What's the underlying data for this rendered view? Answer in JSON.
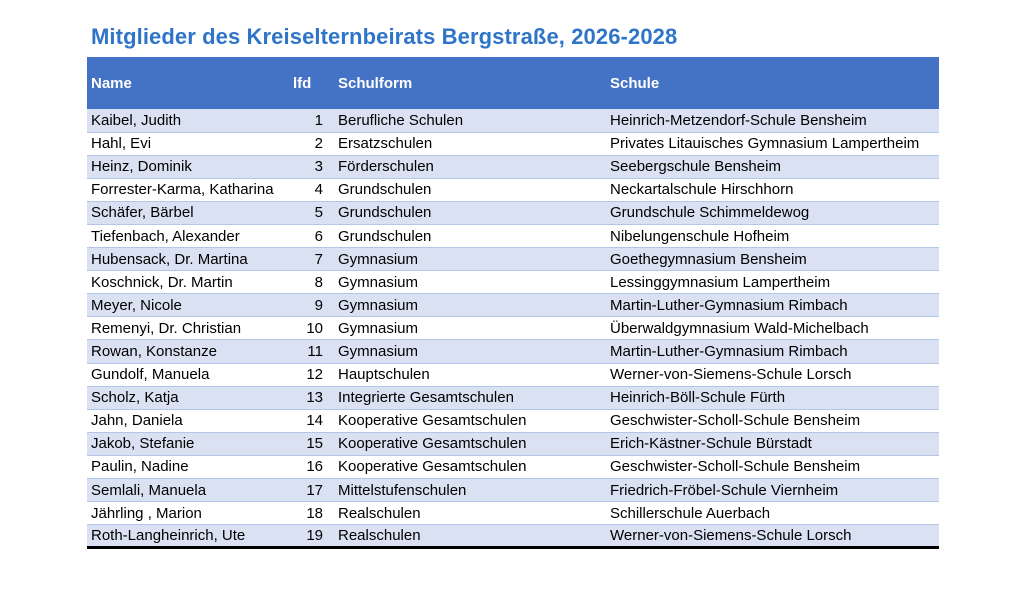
{
  "title": "Mitglieder des Kreiselternbeirats Bergstraße, 2026-2028",
  "headers": {
    "name": "Name",
    "lfd": "lfd",
    "schulform": "Schulform",
    "schule": "Schule"
  },
  "rows": [
    {
      "name": "Kaibel, Judith",
      "lfd": "1",
      "schulform": "Berufliche Schulen",
      "schule": "Heinrich-Metzendorf-Schule Bensheim"
    },
    {
      "name": "Hahl, Evi",
      "lfd": "2",
      "schulform": "Ersatzschulen",
      "schule": "Privates Litauisches Gymnasium Lampertheim"
    },
    {
      "name": "Heinz, Dominik",
      "lfd": "3",
      "schulform": "Förderschulen",
      "schule": "Seebergschule Bensheim"
    },
    {
      "name": "Forrester-Karma, Katharina",
      "lfd": "4",
      "schulform": "Grundschulen",
      "schule": "Neckartalschule Hirschhorn"
    },
    {
      "name": "Schäfer, Bärbel",
      "lfd": "5",
      "schulform": "Grundschulen",
      "schule": "Grundschule Schimmeldewog"
    },
    {
      "name": "Tiefenbach, Alexander",
      "lfd": "6",
      "schulform": "Grundschulen",
      "schule": "Nibelungenschule Hofheim"
    },
    {
      "name": "Hubensack, Dr. Martina",
      "lfd": "7",
      "schulform": "Gymnasium",
      "schule": "Goethegymnasium Bensheim"
    },
    {
      "name": "Koschnick, Dr. Martin",
      "lfd": "8",
      "schulform": "Gymnasium",
      "schule": "Lessinggymnasium Lampertheim"
    },
    {
      "name": "Meyer, Nicole",
      "lfd": "9",
      "schulform": "Gymnasium",
      "schule": "Martin-Luther-Gymnasium Rimbach"
    },
    {
      "name": "Remenyi, Dr. Christian",
      "lfd": "10",
      "schulform": "Gymnasium",
      "schule": "Überwaldgymnasium Wald-Michelbach"
    },
    {
      "name": "Rowan, Konstanze",
      "lfd": "11",
      "schulform": "Gymnasium",
      "schule": "Martin-Luther-Gymnasium Rimbach"
    },
    {
      "name": "Gundolf, Manuela",
      "lfd": "12",
      "schulform": "Hauptschulen",
      "schule": "Werner-von-Siemens-Schule Lorsch"
    },
    {
      "name": "Scholz, Katja",
      "lfd": "13",
      "schulform": "Integrierte Gesamtschulen",
      "schule": "Heinrich-Böll-Schule Fürth"
    },
    {
      "name": "Jahn, Daniela",
      "lfd": "14",
      "schulform": "Kooperative Gesamtschulen",
      "schule": "Geschwister-Scholl-Schule Bensheim"
    },
    {
      "name": "Jakob, Stefanie",
      "lfd": "15",
      "schulform": "Kooperative Gesamtschulen",
      "schule": "Erich-Kästner-Schule Bürstadt"
    },
    {
      "name": "Paulin, Nadine",
      "lfd": "16",
      "schulform": "Kooperative Gesamtschulen",
      "schule": "Geschwister-Scholl-Schule Bensheim"
    },
    {
      "name": "Semlali, Manuela",
      "lfd": "17",
      "schulform": "Mittelstufenschulen",
      "schule": "Friedrich-Fröbel-Schule Viernheim"
    },
    {
      "name": "Jährling , Marion",
      "lfd": "18",
      "schulform": "Realschulen",
      "schule": "Schillerschule Auerbach"
    },
    {
      "name": "Roth-Langheinrich, Ute",
      "lfd": "19",
      "schulform": "Realschulen",
      "schule": "Werner-von-Siemens-Schule Lorsch"
    }
  ]
}
